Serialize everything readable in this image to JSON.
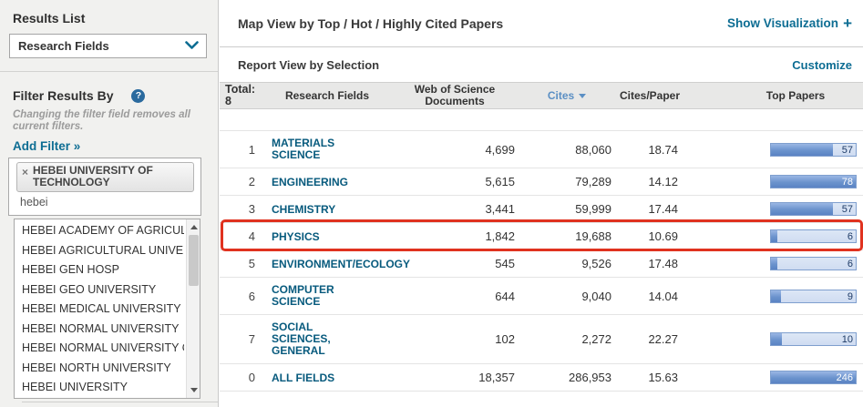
{
  "colors": {
    "accent_link": "#0d6d93",
    "field_link": "#075a7d",
    "sorted_header": "#5b8fc4",
    "highlight_red": "#e0321f",
    "bar_track": "#cfdcf1",
    "bar_border": "#7f9fce",
    "bar_label": "#1d3a66"
  },
  "sidebar": {
    "results_list_label": "Results List",
    "results_dropdown_value": "Research Fields",
    "filter_heading": "Filter Results By",
    "help_icon_glyph": "?",
    "filter_note": "Changing the filter field removes all current filters.",
    "add_filter_label": "Add Filter »",
    "filter_tag": {
      "remove_glyph": "×",
      "label": "HEBEI UNIVERSITY OF TECHNOLOGY"
    },
    "filter_input_value": "hebei",
    "suggestions": [
      "HEBEI ACADEMY OF AGRICULTU",
      "HEBEI AGRICULTURAL UNIVER",
      "HEBEI GEN HOSP",
      "HEBEI GEO UNIVERSITY",
      "HEBEI MEDICAL UNIVERSITY",
      "HEBEI NORMAL UNIVERSITY",
      "HEBEI NORMAL UNIVERSITY OF",
      "HEBEI NORTH UNIVERSITY",
      "HEBEI UNIVERSITY"
    ]
  },
  "main": {
    "map_view_title": "Map View by Top / Hot / Highly Cited Papers",
    "show_visualization_label": "Show Visualization",
    "show_visualization_plus": "+",
    "report_view_title": "Report View by Selection",
    "customize_label": "Customize",
    "table": {
      "total_label": "Total: 8",
      "columns": [
        "Research Fields",
        "Web of Science Documents",
        "Cites",
        "Cites/Paper",
        "Top Papers"
      ],
      "sorted_column": "Cites",
      "highlighted_rank": "4",
      "rows": [
        {
          "rank": "1",
          "field": "MATERIALS SCIENCE",
          "wos_documents": "4,699",
          "cites": "88,060",
          "cites_per_paper": "18.74",
          "top_papers": 57
        },
        {
          "rank": "2",
          "field": "ENGINEERING",
          "wos_documents": "5,615",
          "cites": "79,289",
          "cites_per_paper": "14.12",
          "top_papers": 78
        },
        {
          "rank": "3",
          "field": "CHEMISTRY",
          "wos_documents": "3,441",
          "cites": "59,999",
          "cites_per_paper": "17.44",
          "top_papers": 57
        },
        {
          "rank": "4",
          "field": "PHYSICS",
          "wos_documents": "1,842",
          "cites": "19,688",
          "cites_per_paper": "10.69",
          "top_papers": 6
        },
        {
          "rank": "5",
          "field": "ENVIRONMENT/ECOLOGY",
          "wos_documents": "545",
          "cites": "9,526",
          "cites_per_paper": "17.48",
          "top_papers": 6
        },
        {
          "rank": "6",
          "field": "COMPUTER SCIENCE",
          "wos_documents": "644",
          "cites": "9,040",
          "cites_per_paper": "14.04",
          "top_papers": 9
        },
        {
          "rank": "7",
          "field": "SOCIAL SCIENCES, GENERAL",
          "wos_documents": "102",
          "cites": "2,272",
          "cites_per_paper": "22.27",
          "top_papers": 10
        },
        {
          "rank": "0",
          "field": "ALL FIELDS",
          "wos_documents": "18,357",
          "cites": "286,953",
          "cites_per_paper": "15.63",
          "top_papers": 246,
          "is_all_fields": true
        }
      ]
    }
  }
}
